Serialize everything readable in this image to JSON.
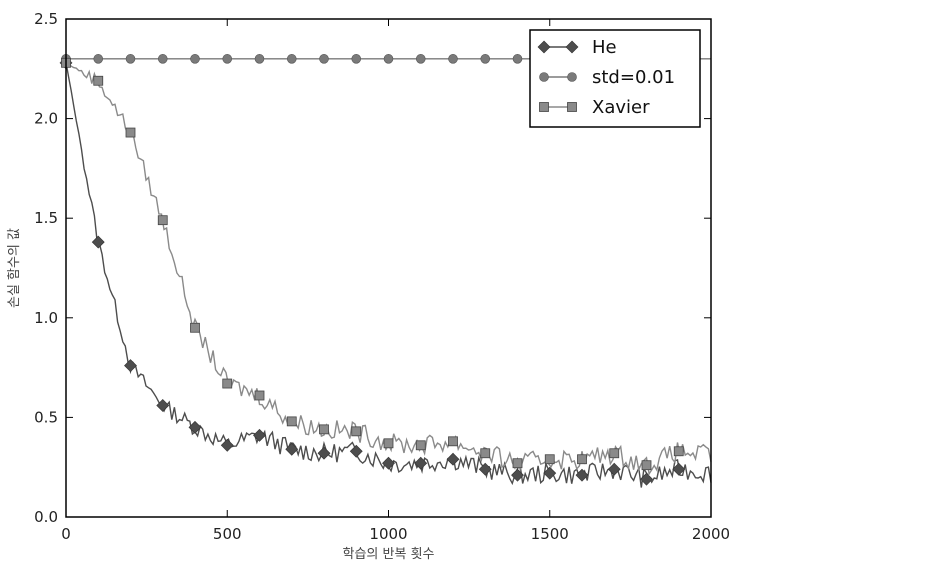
{
  "chart_data": {
    "type": "line",
    "xlabel": "학습의 반복 횟수",
    "ylabel": "손실 함수의 값",
    "xlim": [
      0,
      2000
    ],
    "ylim": [
      0.0,
      2.5
    ],
    "xticks": [
      "0",
      "500",
      "1000",
      "1500",
      "2000"
    ],
    "yticks": [
      "0.0",
      "0.5",
      "1.0",
      "1.5",
      "2.0",
      "2.5"
    ],
    "legend_position": "top-right",
    "grid": false,
    "series": [
      {
        "name": "He",
        "marker": "diamond",
        "color": "#4d4d4d",
        "x": [
          0,
          100,
          200,
          300,
          400,
          500,
          600,
          700,
          800,
          900,
          1000,
          1100,
          1200,
          1300,
          1400,
          1500,
          1600,
          1700,
          1800,
          1900
        ],
        "values": [
          2.28,
          1.38,
          0.76,
          0.56,
          0.45,
          0.36,
          0.41,
          0.34,
          0.32,
          0.33,
          0.27,
          0.27,
          0.29,
          0.24,
          0.21,
          0.22,
          0.21,
          0.24,
          0.19,
          0.24
        ]
      },
      {
        "name": "std=0.01",
        "marker": "circle",
        "color": "#7a7a7a",
        "x": [
          0,
          100,
          200,
          300,
          400,
          500,
          600,
          700,
          800,
          900,
          1000,
          1100,
          1200,
          1300,
          1400
        ],
        "values": [
          2.3,
          2.3,
          2.3,
          2.3,
          2.3,
          2.3,
          2.3,
          2.3,
          2.3,
          2.3,
          2.3,
          2.3,
          2.3,
          2.3,
          2.3
        ]
      },
      {
        "name": "Xavier",
        "marker": "square",
        "color": "#8a8a8a",
        "x": [
          0,
          100,
          200,
          300,
          400,
          500,
          600,
          700,
          800,
          900,
          1000,
          1100,
          1200,
          1300,
          1400,
          1500,
          1600,
          1700,
          1800,
          1900
        ],
        "values": [
          2.28,
          2.19,
          1.93,
          1.49,
          0.95,
          0.67,
          0.61,
          0.48,
          0.44,
          0.43,
          0.37,
          0.36,
          0.38,
          0.32,
          0.27,
          0.29,
          0.29,
          0.32,
          0.26,
          0.33
        ]
      }
    ]
  }
}
